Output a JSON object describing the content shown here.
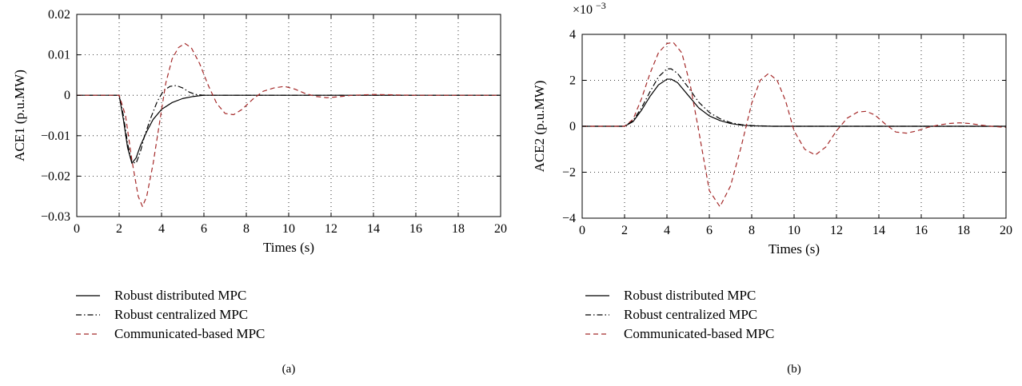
{
  "chart_data": [
    {
      "type": "line",
      "panel_label": "(a)",
      "xlabel": "Times (s)",
      "ylabel": "ACE1 (p.u.MW)",
      "xlim": [
        0,
        20
      ],
      "ylim": [
        -0.03,
        0.02
      ],
      "xticks": [
        0,
        2,
        4,
        6,
        8,
        10,
        12,
        14,
        16,
        18,
        20
      ],
      "yticks": [
        -0.03,
        -0.02,
        -0.01,
        0,
        0.01,
        0.02
      ],
      "ytick_labels": [
        "−0.03",
        "−0.02",
        "−0.01",
        "0",
        "0.01",
        "0.02"
      ],
      "grid": true,
      "legend_position": "below",
      "series": [
        {
          "name": "Robust distributed MPC",
          "style": "solid",
          "color": "#000000",
          "x": [
            0,
            2,
            2.2,
            2.4,
            2.6,
            2.8,
            3.0,
            3.3,
            3.6,
            4.0,
            4.5,
            5.0,
            5.5,
            6.0,
            7,
            8,
            10,
            12,
            14,
            16,
            18,
            20
          ],
          "y": [
            0,
            0,
            -0.006,
            -0.013,
            -0.0168,
            -0.0155,
            -0.0125,
            -0.009,
            -0.006,
            -0.0035,
            -0.0018,
            -0.0008,
            -0.0003,
            0,
            0,
            0,
            0,
            0,
            0,
            0,
            0,
            0
          ]
        },
        {
          "name": "Robust centralized MPC",
          "style": "dashdot",
          "color": "#000000",
          "x": [
            0,
            2,
            2.2,
            2.4,
            2.6,
            2.8,
            3.0,
            3.2,
            3.5,
            3.8,
            4.1,
            4.4,
            4.7,
            5.0,
            5.3,
            5.6,
            6.0,
            6.5,
            7,
            8,
            10,
            12,
            14,
            16,
            18,
            20
          ],
          "y": [
            0,
            0,
            -0.005,
            -0.012,
            -0.0165,
            -0.0168,
            -0.014,
            -0.01,
            -0.0055,
            -0.0015,
            0.0012,
            0.0022,
            0.0024,
            0.0018,
            0.0008,
            0.0002,
            0,
            0,
            0,
            0,
            0,
            0,
            0,
            0,
            0,
            0
          ]
        },
        {
          "name": "Communicated-based MPC",
          "style": "dashed",
          "color": "#a52a2a",
          "x": [
            0,
            2,
            2.3,
            2.6,
            2.9,
            3.1,
            3.3,
            3.6,
            3.9,
            4.2,
            4.5,
            4.8,
            5.1,
            5.4,
            5.8,
            6.2,
            6.6,
            7.0,
            7.4,
            7.8,
            8.3,
            8.8,
            9.3,
            9.8,
            10.3,
            10.8,
            11.3,
            11.8,
            12.3,
            13,
            14,
            16,
            18,
            20
          ],
          "y": [
            0,
            0,
            -0.005,
            -0.016,
            -0.025,
            -0.0275,
            -0.025,
            -0.017,
            -0.007,
            0.003,
            0.009,
            0.0118,
            0.0128,
            0.0118,
            0.0078,
            0.0025,
            -0.002,
            -0.0045,
            -0.0048,
            -0.0035,
            -0.001,
            0.001,
            0.0018,
            0.0022,
            0.0015,
            0.0004,
            -0.0003,
            -0.0006,
            -0.0004,
            0,
            0.0002,
            0,
            0,
            0
          ]
        }
      ]
    },
    {
      "type": "line",
      "panel_label": "(b)",
      "xlabel": "Times (s)",
      "ylabel": "ACE2 (p.u.MW)",
      "scale_label": "×10",
      "scale_exponent": "−3",
      "xlim": [
        0,
        20
      ],
      "ylim": [
        -4,
        4
      ],
      "xticks": [
        0,
        2,
        4,
        6,
        8,
        10,
        12,
        14,
        16,
        18,
        20
      ],
      "yticks": [
        -4,
        -2,
        0,
        2,
        4
      ],
      "ytick_labels": [
        "−4",
        "−2",
        "0",
        "2",
        "4"
      ],
      "grid": true,
      "legend_position": "below",
      "series": [
        {
          "name": "Robust distributed MPC",
          "style": "solid",
          "color": "#000000",
          "x": [
            0,
            2,
            2.4,
            2.8,
            3.2,
            3.6,
            4.0,
            4.2,
            4.5,
            5.0,
            5.5,
            6.0,
            6.5,
            7.0,
            7.5,
            8,
            9,
            10,
            12,
            14,
            16,
            18,
            20
          ],
          "y": [
            0,
            0,
            0.2,
            0.7,
            1.3,
            1.8,
            2.05,
            2.05,
            1.9,
            1.35,
            0.8,
            0.45,
            0.25,
            0.12,
            0.05,
            0.02,
            0,
            0,
            0,
            0,
            0,
            0,
            0
          ]
        },
        {
          "name": "Robust centralized MPC",
          "style": "dashdot",
          "color": "#000000",
          "x": [
            0,
            2,
            2.4,
            2.8,
            3.2,
            3.6,
            4.0,
            4.2,
            4.5,
            5.0,
            5.5,
            6.0,
            6.5,
            7.0,
            7.5,
            8,
            9,
            10,
            12,
            14,
            16,
            18,
            20
          ],
          "y": [
            0,
            0,
            0.25,
            0.8,
            1.5,
            2.15,
            2.5,
            2.5,
            2.3,
            1.7,
            1.05,
            0.6,
            0.33,
            0.16,
            0.07,
            0.03,
            0,
            0,
            0,
            0,
            0,
            0,
            0
          ]
        },
        {
          "name": "Communicated-based MPC",
          "style": "dashed",
          "color": "#a52a2a",
          "x": [
            0,
            2,
            2.4,
            2.8,
            3.2,
            3.6,
            4.0,
            4.3,
            4.7,
            5.1,
            5.5,
            6.0,
            6.5,
            7.0,
            7.5,
            8.0,
            8.4,
            8.8,
            9.2,
            9.6,
            10.0,
            10.5,
            11.0,
            11.5,
            12.0,
            12.5,
            13.0,
            13.4,
            13.8,
            14.3,
            14.8,
            15.3,
            15.8,
            16.3,
            16.8,
            17.3,
            17.8,
            18.3,
            18.8,
            19.3,
            20
          ],
          "y": [
            0,
            0,
            0.3,
            1.2,
            2.3,
            3.2,
            3.6,
            3.65,
            3.2,
            1.8,
            -0.2,
            -2.8,
            -3.5,
            -2.6,
            -0.9,
            1.0,
            2.0,
            2.3,
            2.0,
            1.1,
            -0.2,
            -1.0,
            -1.25,
            -0.9,
            -0.2,
            0.35,
            0.62,
            0.65,
            0.5,
            0.1,
            -0.25,
            -0.3,
            -0.2,
            -0.05,
            0.05,
            0.12,
            0.15,
            0.12,
            0.05,
            0,
            -0.05
          ]
        }
      ]
    }
  ]
}
